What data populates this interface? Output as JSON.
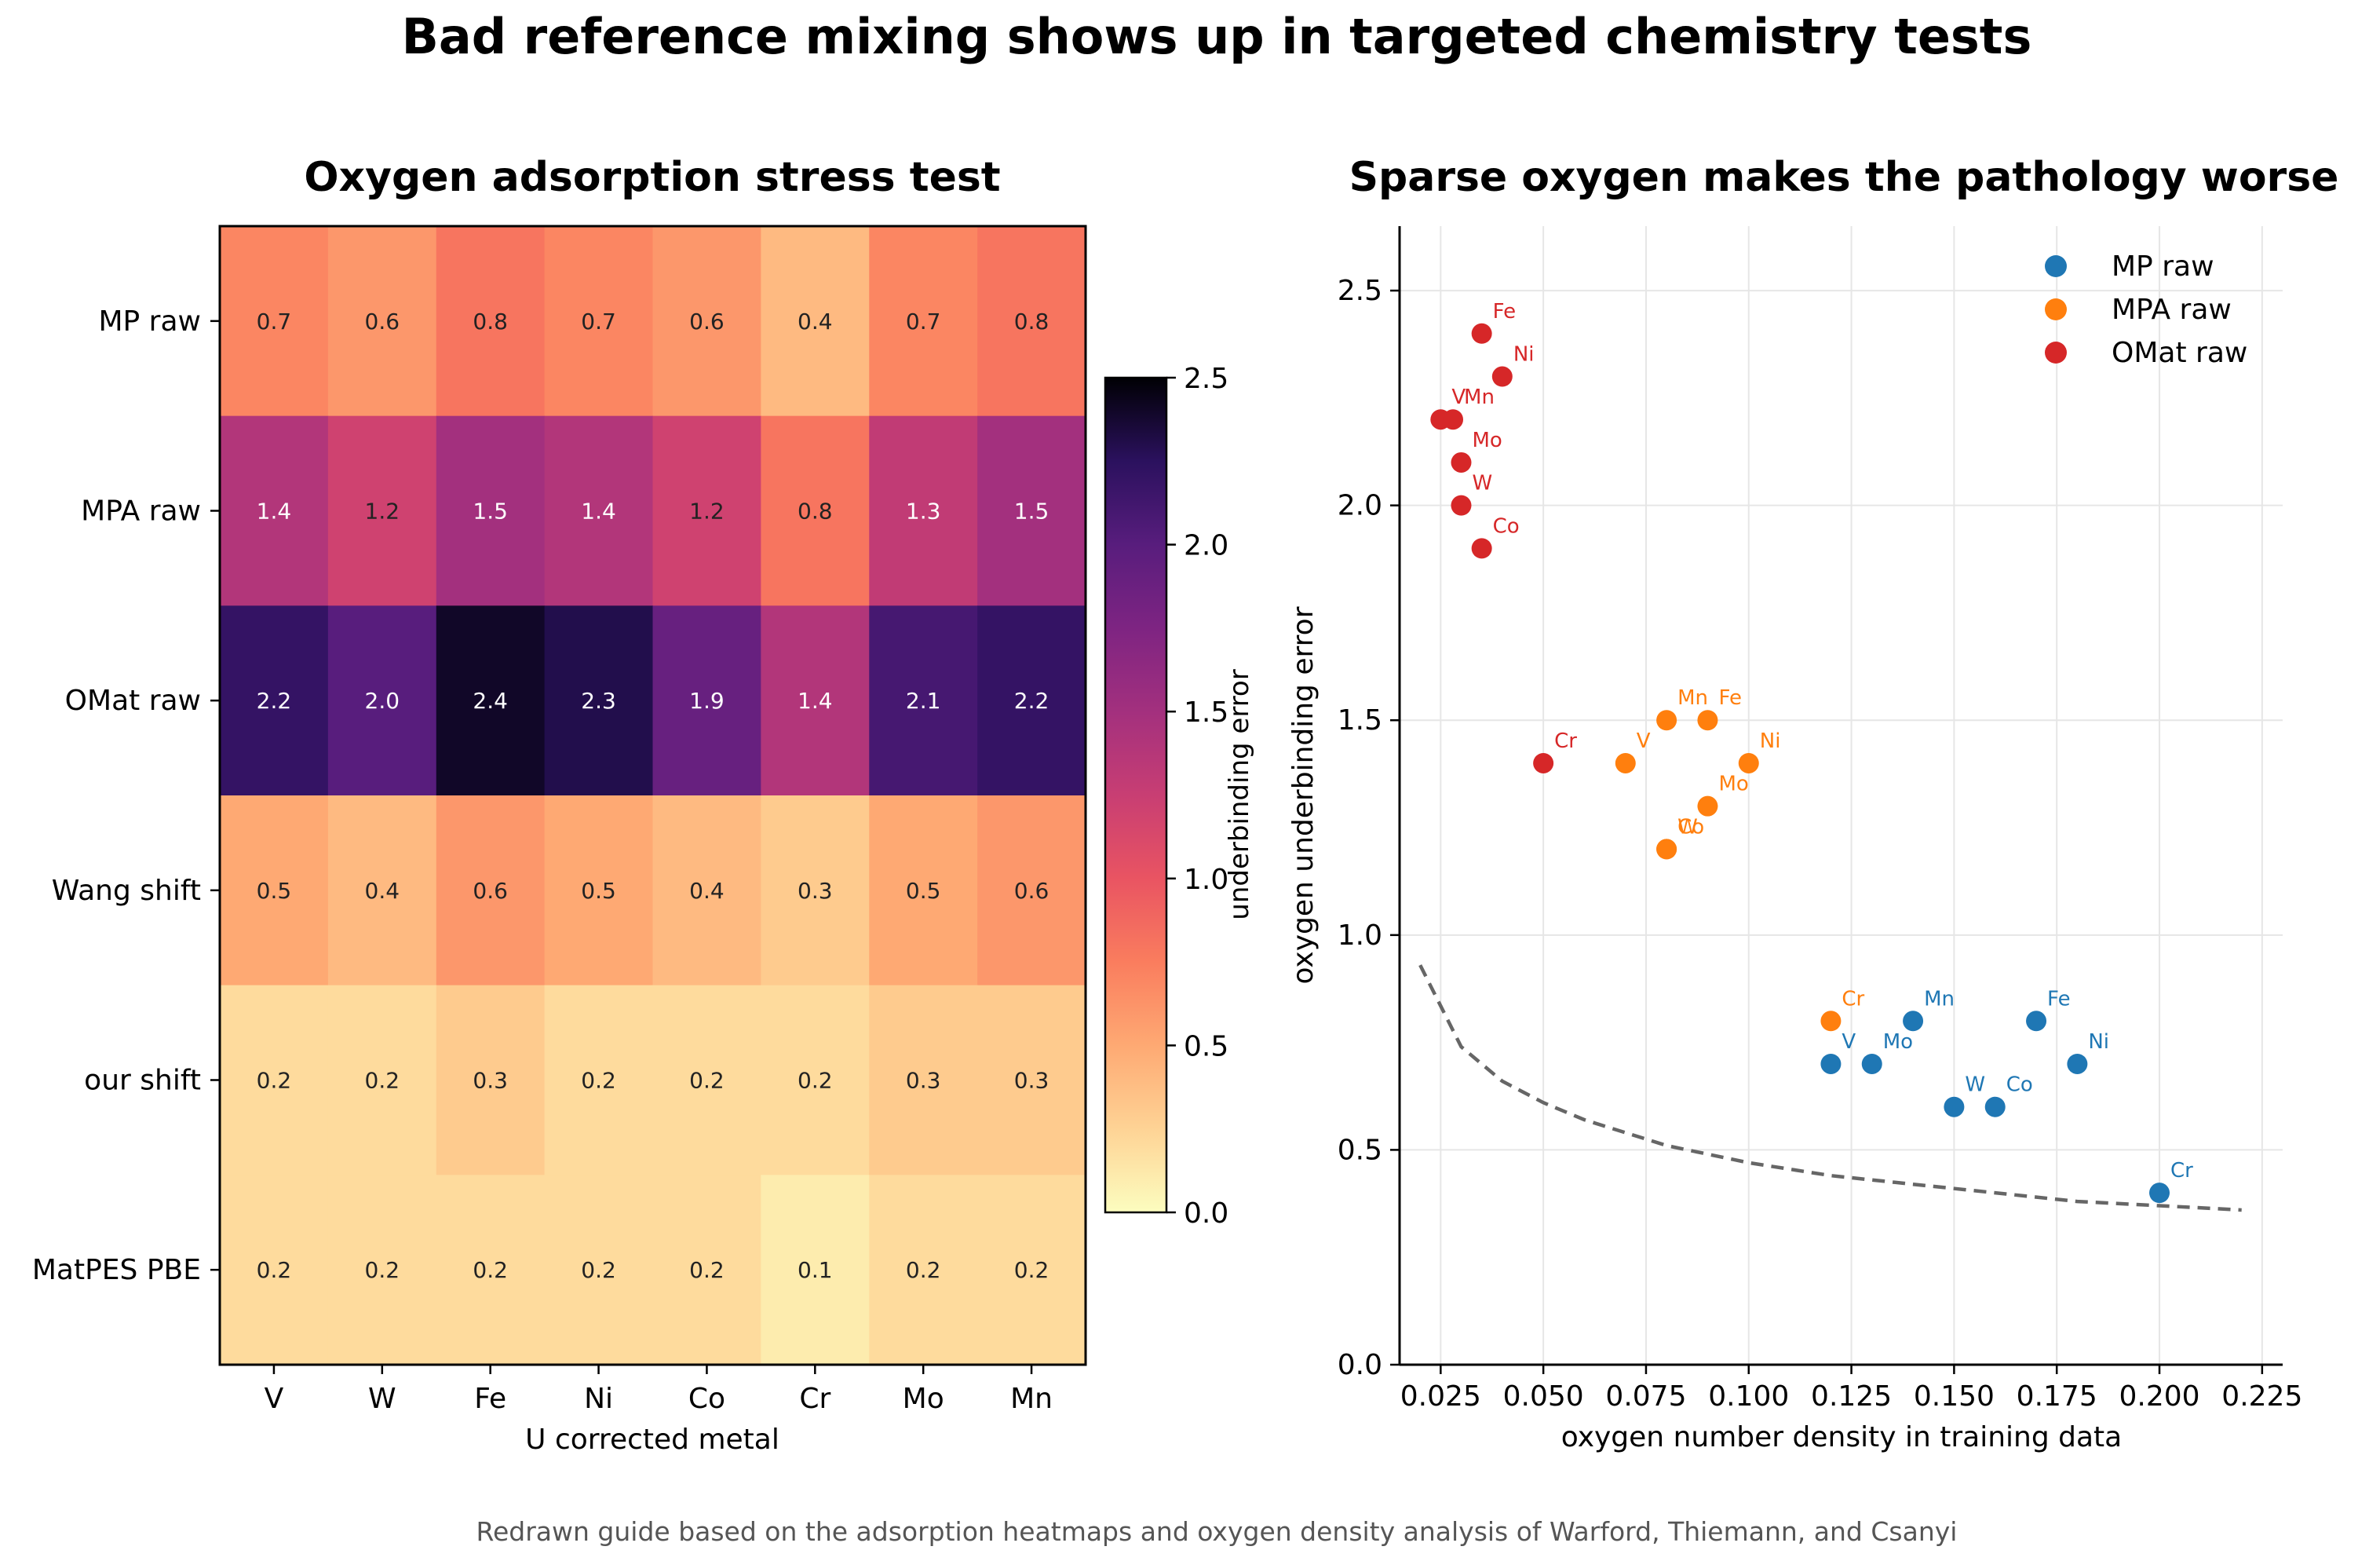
{
  "figure": {
    "title": "Bad reference mixing shows up in targeted chemistry tests",
    "caption": "Redrawn guide based on the adsorption heatmaps and oxygen density analysis of Warford, Thiemann, and Csanyi"
  },
  "colors": {
    "mp": "#1f77b4",
    "mpa": "#ff7f0e",
    "omat": "#d62728",
    "trend": "#666666",
    "colormap": "magma_r"
  },
  "chart_data": [
    {
      "type": "heatmap",
      "title": "Oxygen adsorption stress test",
      "xlabel": "U corrected metal",
      "ylabel": "",
      "x_categories": [
        "V",
        "W",
        "Fe",
        "Ni",
        "Co",
        "Cr",
        "Mo",
        "Mn"
      ],
      "y_categories": [
        "MP raw",
        "MPA raw",
        "OMat raw",
        "Wang shift",
        "our shift",
        "MatPES PBE"
      ],
      "values": [
        [
          0.7,
          0.6,
          0.8,
          0.7,
          0.6,
          0.4,
          0.7,
          0.8
        ],
        [
          1.4,
          1.2,
          1.5,
          1.4,
          1.2,
          0.8,
          1.3,
          1.5
        ],
        [
          2.2,
          2.0,
          2.4,
          2.3,
          1.9,
          1.4,
          2.1,
          2.2
        ],
        [
          0.5,
          0.4,
          0.6,
          0.5,
          0.4,
          0.3,
          0.5,
          0.6
        ],
        [
          0.2,
          0.2,
          0.3,
          0.2,
          0.2,
          0.2,
          0.3,
          0.3
        ],
        [
          0.2,
          0.2,
          0.2,
          0.2,
          0.2,
          0.1,
          0.2,
          0.2
        ]
      ],
      "colorbar": {
        "label": "underbinding error",
        "range": [
          0.0,
          2.5
        ],
        "ticks": [
          "0.0",
          "0.5",
          "1.0",
          "1.5",
          "2.0",
          "2.5"
        ]
      }
    },
    {
      "type": "scatter",
      "title": "Sparse oxygen makes the pathology worse",
      "xlabel": "oxygen number density in training data",
      "ylabel": "oxygen underbinding error",
      "xlim": [
        0.015,
        0.23
      ],
      "ylim": [
        0.0,
        2.65
      ],
      "x_ticks": [
        "0.025",
        "0.050",
        "0.075",
        "0.100",
        "0.125",
        "0.150",
        "0.175",
        "0.200",
        "0.225"
      ],
      "y_ticks": [
        "0.0",
        "0.5",
        "1.0",
        "1.5",
        "2.0",
        "2.5"
      ],
      "grid": true,
      "legend": "top-right",
      "series": [
        {
          "name": "MP raw",
          "points": [
            {
              "label": "V",
              "x": 0.12,
              "y": 0.7
            },
            {
              "label": "W",
              "x": 0.15,
              "y": 0.6
            },
            {
              "label": "Fe",
              "x": 0.17,
              "y": 0.8
            },
            {
              "label": "Ni",
              "x": 0.18,
              "y": 0.7
            },
            {
              "label": "Co",
              "x": 0.16,
              "y": 0.6
            },
            {
              "label": "Cr",
              "x": 0.2,
              "y": 0.4
            },
            {
              "label": "Mo",
              "x": 0.13,
              "y": 0.7
            },
            {
              "label": "Mn",
              "x": 0.14,
              "y": 0.8
            }
          ]
        },
        {
          "name": "MPA raw",
          "points": [
            {
              "label": "V",
              "x": 0.07,
              "y": 1.4
            },
            {
              "label": "W",
              "x": 0.08,
              "y": 1.2
            },
            {
              "label": "Fe",
              "x": 0.09,
              "y": 1.5
            },
            {
              "label": "Ni",
              "x": 0.1,
              "y": 1.4
            },
            {
              "label": "Co",
              "x": 0.08,
              "y": 1.2
            },
            {
              "label": "Cr",
              "x": 0.12,
              "y": 0.8
            },
            {
              "label": "Mo",
              "x": 0.09,
              "y": 1.3
            },
            {
              "label": "Mn",
              "x": 0.08,
              "y": 1.5
            }
          ]
        },
        {
          "name": "OMat raw",
          "points": [
            {
              "label": "V",
              "x": 0.025,
              "y": 2.2
            },
            {
              "label": "W",
              "x": 0.03,
              "y": 2.0
            },
            {
              "label": "Fe",
              "x": 0.035,
              "y": 2.4
            },
            {
              "label": "Ni",
              "x": 0.04,
              "y": 2.3
            },
            {
              "label": "Co",
              "x": 0.035,
              "y": 1.9
            },
            {
              "label": "Cr",
              "x": 0.05,
              "y": 1.4
            },
            {
              "label": "Mo",
              "x": 0.03,
              "y": 2.1
            },
            {
              "label": "Mn",
              "x": 0.028,
              "y": 2.2
            }
          ]
        }
      ],
      "trend_line": {
        "style": "dashed",
        "x": [
          0.02,
          0.03,
          0.04,
          0.05,
          0.06,
          0.08,
          0.1,
          0.12,
          0.14,
          0.16,
          0.18,
          0.2,
          0.22
        ],
        "y": [
          0.93,
          0.74,
          0.66,
          0.61,
          0.57,
          0.51,
          0.47,
          0.44,
          0.42,
          0.4,
          0.38,
          0.37,
          0.36
        ]
      }
    }
  ]
}
